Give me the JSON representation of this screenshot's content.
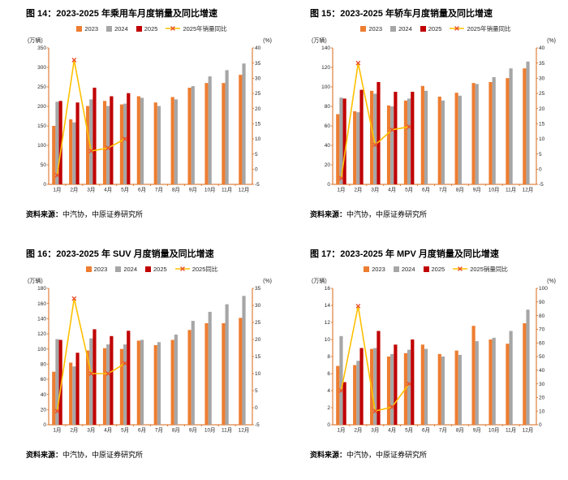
{
  "colors": {
    "background": "#ffffff",
    "axis": "#D86613",
    "tick_text": "#262626",
    "bar_2023": "#ED7D31",
    "bar_2024": "#A6A6A6",
    "bar_2025": "#C00000",
    "line_yoy": "#FFC000",
    "marker_yoy": "#E8502A"
  },
  "source_label": "资料来源：",
  "source_text": "中汽协，中原证券研究所",
  "chart_data": [
    {
      "id": "fig14",
      "type": "bar+line",
      "title": "图 14：2023-2025 年乘用车月度销量及同比增速",
      "ylabel_left": "(万辆)",
      "ylabel_right": "(%)",
      "grid": false,
      "legend_position": "top",
      "categories": [
        "1月",
        "2月",
        "3月",
        "4月",
        "5月",
        "6月",
        "7月",
        "8月",
        "9月",
        "10月",
        "11月",
        "12月"
      ],
      "left_axis": {
        "min": 0,
        "max": 350,
        "step": 50
      },
      "right_axis": {
        "min": -5,
        "max": 40,
        "step": 5
      },
      "series": [
        {
          "name": "2023",
          "type": "bar",
          "axis": "left",
          "color": "#ED7D31",
          "values": [
            150,
            167,
            201,
            214,
            205,
            226,
            210,
            224,
            248,
            260,
            260,
            281
          ]
        },
        {
          "name": "2024",
          "type": "bar",
          "axis": "left",
          "color": "#A6A6A6",
          "values": [
            212,
            159,
            218,
            201,
            207,
            222,
            201,
            218,
            252,
            277,
            293,
            310
          ]
        },
        {
          "name": "2025",
          "type": "bar",
          "axis": "left",
          "color": "#C00000",
          "values": [
            214,
            210,
            248,
            226,
            234,
            null,
            null,
            null,
            null,
            null,
            null,
            null
          ]
        },
        {
          "name": "2025年销量同比",
          "type": "line",
          "axis": "right",
          "color": "#FFC000",
          "marker": "x",
          "marker_color": "#E8502A",
          "values": [
            -2,
            36,
            6,
            7,
            10,
            null,
            null,
            null,
            null,
            null,
            null,
            null
          ]
        }
      ]
    },
    {
      "id": "fig15",
      "type": "bar+line",
      "title": "图 15：2023-2025 年轿车月度销量及同比增速",
      "ylabel_left": "(万辆)",
      "ylabel_right": "(%)",
      "grid": false,
      "legend_position": "top",
      "categories": [
        "1月",
        "2月",
        "3月",
        "4月",
        "5月",
        "6月",
        "7月",
        "8月",
        "9月",
        "10月",
        "11月",
        "12月"
      ],
      "left_axis": {
        "min": 0,
        "max": 140,
        "step": 20
      },
      "right_axis": {
        "min": -5,
        "max": 40,
        "step": 5
      },
      "series": [
        {
          "name": "2023",
          "type": "bar",
          "axis": "left",
          "color": "#ED7D31",
          "values": [
            72,
            75,
            96,
            81,
            86,
            101,
            90,
            94,
            104,
            105,
            109,
            119
          ]
        },
        {
          "name": "2024",
          "type": "bar",
          "axis": "left",
          "color": "#A6A6A6",
          "values": [
            89,
            74,
            93,
            80,
            88,
            96,
            86,
            91,
            103,
            110,
            119,
            126
          ]
        },
        {
          "name": "2025",
          "type": "bar",
          "axis": "left",
          "color": "#C00000",
          "values": [
            88,
            97,
            105,
            95,
            95,
            null,
            null,
            null,
            null,
            null,
            null,
            null
          ]
        },
        {
          "name": "2025年销量同比",
          "type": "line",
          "axis": "right",
          "color": "#FFC000",
          "marker": "x",
          "marker_color": "#E8502A",
          "values": [
            -3,
            35,
            8,
            13,
            14,
            null,
            null,
            null,
            null,
            null,
            null,
            null
          ]
        }
      ]
    },
    {
      "id": "fig16",
      "type": "bar+line",
      "title": "图 16：2023-2025 年 SUV 月度销量及同比增速",
      "ylabel_left": "(万辆)",
      "ylabel_right": "(%)",
      "grid": false,
      "legend_position": "top",
      "categories": [
        "1月",
        "2月",
        "3月",
        "4月",
        "5月",
        "6月",
        "7月",
        "8月",
        "9月",
        "10月",
        "11月",
        "12月"
      ],
      "left_axis": {
        "min": 0,
        "max": 180,
        "step": 20
      },
      "right_axis": {
        "min": -5,
        "max": 35,
        "step": 5
      },
      "series": [
        {
          "name": "2023",
          "type": "bar",
          "axis": "left",
          "color": "#ED7D31",
          "values": [
            70,
            82,
            98,
            101,
            100,
            111,
            105,
            112,
            125,
            134,
            134,
            141
          ]
        },
        {
          "name": "2024",
          "type": "bar",
          "axis": "left",
          "color": "#A6A6A6",
          "values": [
            113,
            77,
            114,
            106,
            106,
            112,
            109,
            119,
            137,
            149,
            159,
            170
          ]
        },
        {
          "name": "2025",
          "type": "bar",
          "axis": "left",
          "color": "#C00000",
          "values": [
            112,
            95,
            126,
            117,
            124,
            null,
            null,
            null,
            null,
            null,
            null,
            null
          ]
        },
        {
          "name": "2025同比",
          "type": "line",
          "axis": "right",
          "color": "#FFC000",
          "marker": "x",
          "marker_color": "#E8502A",
          "values": [
            -1,
            32,
            10,
            10,
            13,
            null,
            null,
            null,
            null,
            null,
            null,
            null
          ]
        }
      ]
    },
    {
      "id": "fig17",
      "type": "bar+line",
      "title": "图 17：2023-2025 年 MPV 月度销量及同比增速",
      "ylabel_left": "(万辆)",
      "ylabel_right": "(%)",
      "grid": false,
      "legend_position": "top",
      "categories": [
        "1月",
        "2月",
        "3月",
        "4月",
        "5月",
        "6月",
        "7月",
        "8月",
        "9月",
        "10月",
        "11月",
        "12月"
      ],
      "left_axis": {
        "min": 0,
        "max": 16,
        "step": 2
      },
      "right_axis": {
        "min": 0,
        "max": 100,
        "step": 10
      },
      "series": [
        {
          "name": "2023",
          "type": "bar",
          "axis": "left",
          "color": "#ED7D31",
          "values": [
            6.9,
            7,
            8.9,
            8,
            8.4,
            9.4,
            8.3,
            8.7,
            11.6,
            10,
            9.5,
            11.9
          ]
        },
        {
          "name": "2024",
          "type": "bar",
          "axis": "left",
          "color": "#A6A6A6",
          "values": [
            10.4,
            7.5,
            9,
            8.3,
            8.8,
            8.9,
            8,
            8.2,
            9.8,
            10.2,
            11,
            13.5
          ]
        },
        {
          "name": "2025",
          "type": "bar",
          "axis": "left",
          "color": "#C00000",
          "values": [
            5,
            9,
            11,
            9.4,
            10,
            null,
            null,
            null,
            null,
            null,
            null,
            null
          ]
        },
        {
          "name": "2025销量同比",
          "type": "line",
          "axis": "right",
          "color": "#FFC000",
          "marker": "x",
          "marker_color": "#E8502A",
          "values": [
            25,
            87,
            10,
            13,
            30,
            null,
            null,
            null,
            null,
            null,
            null,
            null
          ]
        }
      ]
    }
  ]
}
